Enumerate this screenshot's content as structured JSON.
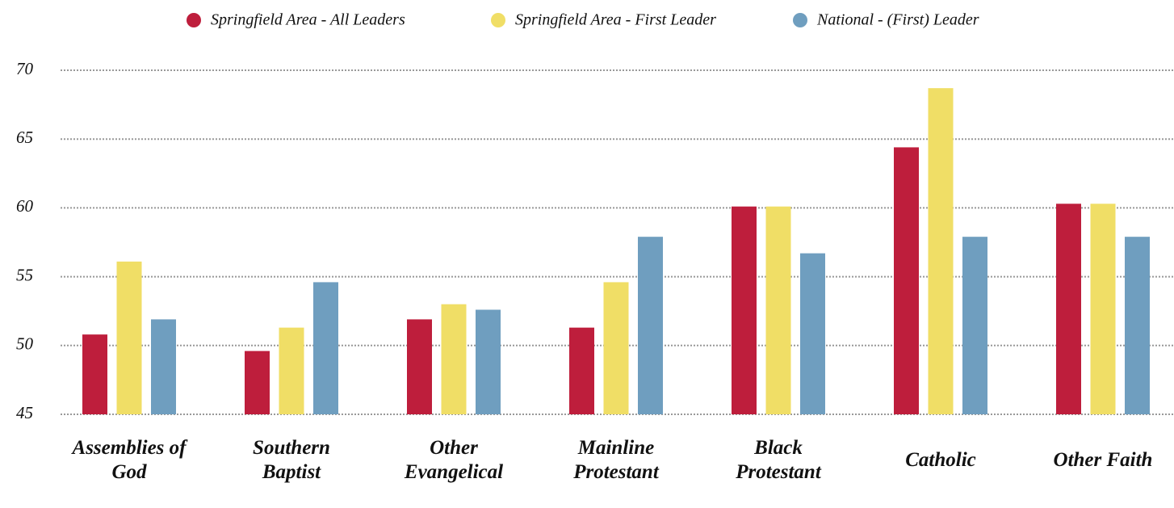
{
  "chart_data": {
    "type": "bar",
    "categories": [
      "Assemblies of God",
      "Southern Baptist",
      "Other Evangelical",
      "Mainline Protestant",
      "Black Protestant",
      "Catholic",
      "Other Faith"
    ],
    "series": [
      {
        "name": "Springfield Area - All Leaders",
        "color": "#be1e3c",
        "values": [
          50.8,
          49.6,
          51.9,
          51.3,
          60.1,
          64.4,
          60.3
        ]
      },
      {
        "name": "Springfield Area - First Leader",
        "color": "#f0de66",
        "values": [
          56.1,
          51.3,
          53.0,
          54.6,
          60.1,
          68.7,
          60.3
        ]
      },
      {
        "name": "National - (First) Leader",
        "color": "#6f9ebf",
        "values": [
          51.9,
          54.6,
          52.6,
          57.9,
          56.7,
          57.9,
          57.9
        ]
      }
    ],
    "ylim": [
      45,
      70
    ],
    "yticks": [
      45,
      50,
      55,
      60,
      65,
      70
    ],
    "grid": true,
    "legend": "top"
  }
}
